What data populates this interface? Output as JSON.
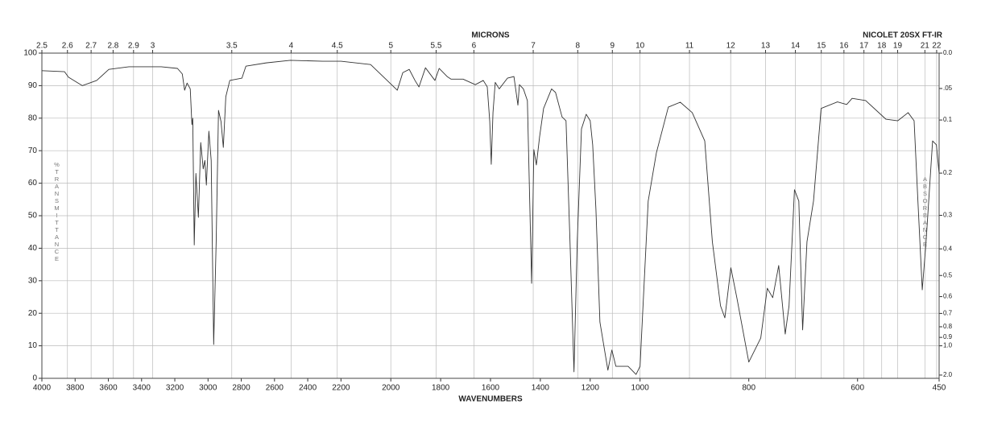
{
  "chart_data": {
    "type": "line",
    "title": "NICOLET 20SX FT-IR",
    "xlabel": "WAVENUMBERS",
    "x2label": "MICRONS",
    "ylabel": "%TRANSMITTANCE",
    "y2label": "ABSORBANCE",
    "color": "#333333",
    "grid": true,
    "xlim": [
      4000,
      450
    ],
    "xticks": [
      4000,
      3800,
      3600,
      3400,
      3200,
      3000,
      2800,
      2600,
      2400,
      2200,
      2000,
      1800,
      1600,
      1400,
      1200,
      1000,
      800,
      600,
      450
    ],
    "x2ticks": [
      2.5,
      2.6,
      2.7,
      2.8,
      2.9,
      3,
      3.5,
      4,
      4.5,
      5,
      5.5,
      6,
      7,
      8,
      9,
      10,
      11,
      12,
      13,
      14,
      15,
      16,
      17,
      18,
      19,
      21,
      22
    ],
    "ylim": [
      0,
      100
    ],
    "yticks": [
      0,
      10,
      20,
      30,
      40,
      50,
      60,
      70,
      80,
      90,
      100
    ],
    "y2ticks": [
      {
        "value": 0,
        "label": "0.0"
      },
      {
        "value": 0.05,
        "label": ".05"
      },
      0.1,
      0.2,
      0.3,
      0.4,
      0.5,
      0.6,
      0.7,
      0.8,
      0.9,
      {
        "value": 1,
        "label": "1.0"
      },
      {
        "value": 2,
        "label": "2.0"
      }
    ],
    "x": [
      4000,
      3864,
      3840,
      3757,
      3670,
      3597,
      3476,
      3282,
      3184,
      3155,
      3141,
      3126,
      3107,
      3097,
      3092,
      3083,
      3073,
      3058,
      3044,
      3029,
      3019,
      3010,
      2995,
      2981,
      2966,
      2951,
      2937,
      2922,
      2908,
      2893,
      2869,
      2796,
      2772,
      2650,
      2505,
      2311,
      2200,
      2081,
      1974,
      1952,
      1926,
      1903,
      1887,
      1861,
      1823,
      1806,
      1774,
      1758,
      1710,
      1661,
      1629,
      1613,
      1603,
      1597,
      1590,
      1581,
      1565,
      1532,
      1506,
      1490,
      1484,
      1468,
      1452,
      1435,
      1426,
      1416,
      1403,
      1387,
      1355,
      1339,
      1313,
      1297,
      1281,
      1265,
      1252,
      1235,
      1216,
      1200,
      1190,
      1177,
      1161,
      1129,
      1113,
      1097,
      1048,
      1016,
      1000,
      985,
      970,
      948,
      926,
      904,
      881,
      867,
      852,
      844,
      833,
      822,
      800,
      778,
      766,
      756,
      745,
      733,
      726,
      716,
      708,
      701,
      693,
      681,
      667,
      637,
      620,
      610,
      585,
      548,
      526,
      507,
      496,
      489,
      481,
      474,
      462,
      455,
      450
    ],
    "values": [
      94.6,
      94.3,
      92.6,
      90,
      91.6,
      95,
      95.8,
      95.8,
      95.3,
      93.6,
      88.6,
      90.8,
      89,
      78,
      80,
      41,
      63,
      49.5,
      72.5,
      64.4,
      67,
      59.4,
      76,
      67,
      10.4,
      42,
      82.4,
      79,
      71,
      86.6,
      91.6,
      92.3,
      96,
      97,
      97.8,
      97.5,
      97.5,
      96.5,
      88.6,
      94,
      95,
      91.6,
      89.6,
      95.5,
      91.6,
      95.3,
      92.8,
      92,
      92,
      90.3,
      91.6,
      89.6,
      79,
      65.8,
      81.7,
      91,
      89,
      92.3,
      92.8,
      84,
      90.3,
      89,
      85.4,
      29.2,
      70.3,
      65.6,
      74.3,
      83,
      89,
      87.9,
      80.4,
      79.2,
      42,
      2,
      42,
      76.7,
      81.2,
      79.2,
      71.8,
      52,
      17.3,
      2.5,
      8.7,
      3.7,
      3.7,
      1.2,
      3.7,
      54.5,
      69.3,
      83.4,
      84.9,
      81.7,
      73,
      42,
      22.3,
      18.6,
      34,
      24.8,
      5,
      12.4,
      27.7,
      24.8,
      34.7,
      13.6,
      22.3,
      58,
      54.5,
      14.9,
      42,
      54.5,
      83,
      85,
      84.2,
      86.1,
      85.4,
      79.7,
      79.2,
      81.7,
      79.2,
      54.5,
      27.2,
      42,
      73,
      71.8,
      63
    ]
  }
}
